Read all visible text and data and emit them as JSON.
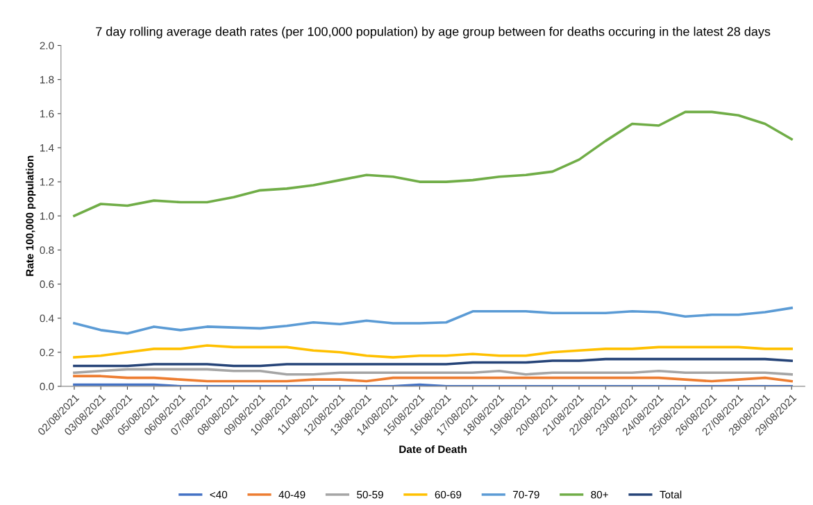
{
  "chart_data": {
    "type": "line",
    "title": "7 day rolling average death rates (per 100,000 population) by age group between for deaths occuring in the latest 28 days",
    "xlabel": "Date of Death",
    "ylabel": "Rate 100,000 population",
    "categories": [
      "02/08/2021",
      "03/08/2021",
      "04/08/2021",
      "05/08/2021",
      "06/08/2021",
      "07/08/2021",
      "08/08/2021",
      "09/08/2021",
      "10/08/2021",
      "11/08/2021",
      "12/08/2021",
      "13/08/2021",
      "14/08/2021",
      "15/08/2021",
      "16/08/2021",
      "17/08/2021",
      "18/08/2021",
      "19/08/2021",
      "20/08/2021",
      "21/08/2021",
      "22/08/2021",
      "23/08/2021",
      "24/08/2021",
      "25/08/2021",
      "26/08/2021",
      "27/08/2021",
      "28/08/2021",
      "29/08/2021"
    ],
    "series": [
      {
        "name": "<40",
        "color": "#4472c4",
        "values": [
          0.01,
          0.01,
          0.01,
          0.01,
          0.0,
          0.0,
          0.0,
          0.0,
          0.0,
          0.0,
          0.0,
          0.0,
          0.0,
          0.01,
          0.0,
          0.0,
          0.0,
          0.0,
          0.0,
          0.0,
          0.0,
          0.0,
          0.0,
          0.0,
          0.0,
          0.0,
          0.0,
          0.0
        ]
      },
      {
        "name": "40-49",
        "color": "#ed7d31",
        "values": [
          0.06,
          0.06,
          0.05,
          0.05,
          0.04,
          0.03,
          0.03,
          0.03,
          0.03,
          0.04,
          0.04,
          0.03,
          0.05,
          0.05,
          0.05,
          0.05,
          0.05,
          0.05,
          0.05,
          0.05,
          0.05,
          0.05,
          0.05,
          0.04,
          0.03,
          0.04,
          0.05,
          0.03
        ]
      },
      {
        "name": "50-59",
        "color": "#a5a5a5",
        "values": [
          0.08,
          0.09,
          0.1,
          0.1,
          0.1,
          0.1,
          0.09,
          0.09,
          0.07,
          0.07,
          0.08,
          0.08,
          0.08,
          0.08,
          0.08,
          0.08,
          0.09,
          0.07,
          0.08,
          0.08,
          0.08,
          0.08,
          0.09,
          0.08,
          0.08,
          0.08,
          0.08,
          0.07
        ]
      },
      {
        "name": "60-69",
        "color": "#ffc000",
        "values": [
          0.17,
          0.18,
          0.2,
          0.22,
          0.22,
          0.24,
          0.23,
          0.23,
          0.23,
          0.21,
          0.2,
          0.18,
          0.17,
          0.18,
          0.18,
          0.19,
          0.18,
          0.18,
          0.2,
          0.21,
          0.22,
          0.22,
          0.23,
          0.23,
          0.23,
          0.23,
          0.22,
          0.22
        ]
      },
      {
        "name": "70-79",
        "color": "#5b9bd5",
        "values": [
          0.37,
          0.33,
          0.31,
          0.35,
          0.33,
          0.35,
          0.345,
          0.34,
          0.355,
          0.375,
          0.365,
          0.385,
          0.37,
          0.37,
          0.375,
          0.44,
          0.44,
          0.44,
          0.43,
          0.43,
          0.43,
          0.44,
          0.435,
          0.41,
          0.42,
          0.42,
          0.435,
          0.46
        ]
      },
      {
        "name": "80+",
        "color": "#70ad47",
        "values": [
          1.0,
          1.07,
          1.06,
          1.09,
          1.08,
          1.08,
          1.11,
          1.15,
          1.16,
          1.18,
          1.21,
          1.24,
          1.23,
          1.2,
          1.2,
          1.21,
          1.23,
          1.24,
          1.26,
          1.33,
          1.44,
          1.54,
          1.53,
          1.61,
          1.61,
          1.59,
          1.54,
          1.45
        ]
      },
      {
        "name": "Total",
        "color": "#264478",
        "values": [
          0.12,
          0.12,
          0.12,
          0.13,
          0.13,
          0.13,
          0.12,
          0.12,
          0.13,
          0.13,
          0.13,
          0.13,
          0.13,
          0.13,
          0.13,
          0.14,
          0.14,
          0.14,
          0.15,
          0.15,
          0.16,
          0.16,
          0.16,
          0.16,
          0.16,
          0.16,
          0.16,
          0.15
        ]
      }
    ],
    "ylim": [
      0,
      2.0
    ],
    "yticks": [
      {
        "value": 0,
        "label": "0.0"
      },
      {
        "value": 0.2,
        "label": "0.2"
      },
      {
        "value": 0.4,
        "label": "0.4"
      },
      {
        "value": 0.6,
        "label": "0.6"
      },
      {
        "value": 0.8,
        "label": "0.8"
      },
      {
        "value": 1.0,
        "label": "1.0"
      },
      {
        "value": 1.2,
        "label": "1.2"
      },
      {
        "value": 1.4,
        "label": "1.4"
      },
      {
        "value": 1.6,
        "label": "1.6"
      },
      {
        "value": 1.8,
        "label": "1.8"
      },
      {
        "value": 2.0,
        "label": "2.0"
      }
    ],
    "grid": false,
    "legend": "bottom",
    "marker": "none",
    "line_style": "solid"
  }
}
